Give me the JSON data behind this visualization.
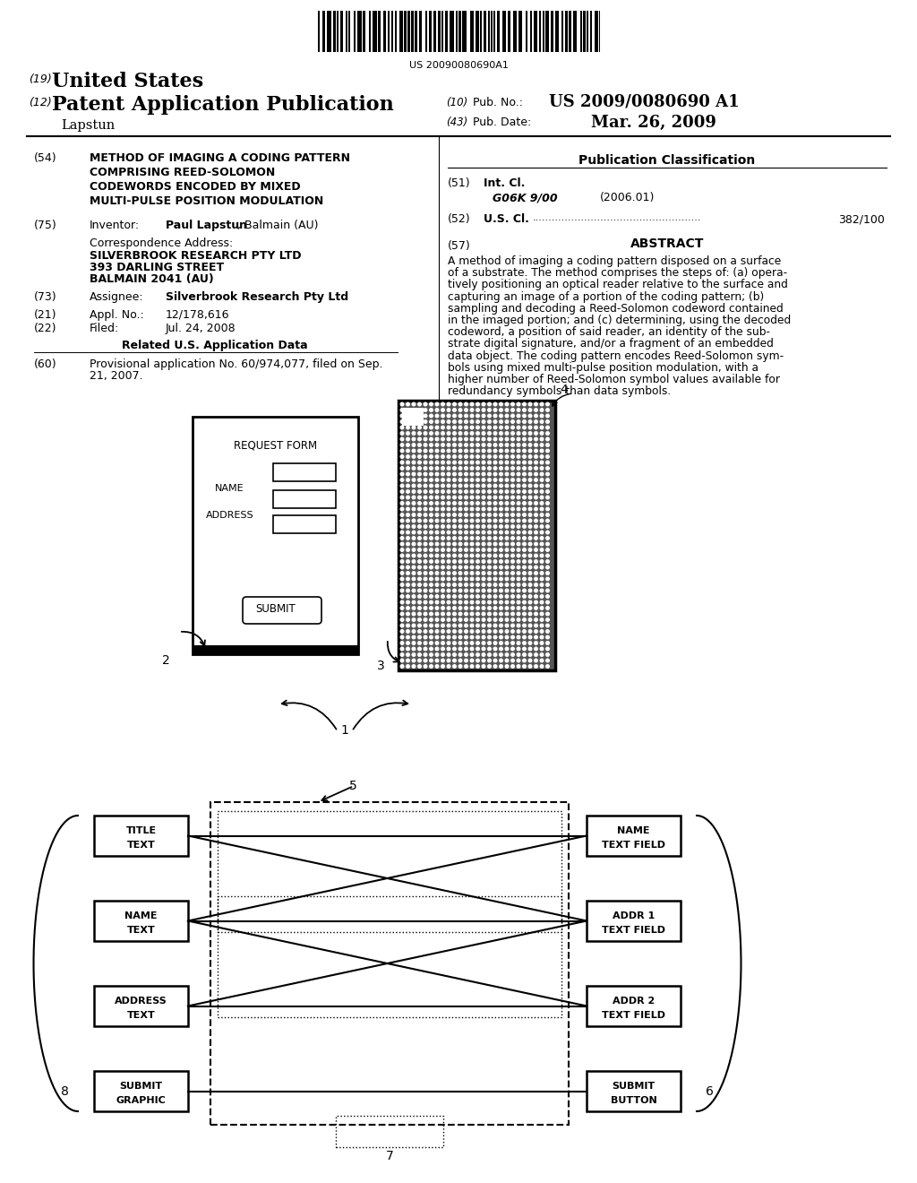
{
  "bg_color": "#ffffff",
  "barcode_text": "US 20090080690A1",
  "field54_text": [
    "METHOD OF IMAGING A CODING PATTERN",
    "COMPRISING REED-SOLOMON",
    "CODEWORDS ENCODED BY MIXED",
    "MULTI-PULSE POSITION MODULATION"
  ],
  "field75_value": "Paul Lapstun, Balmain (AU)",
  "corr_name": "SILVERBROOK RESEARCH PTY LTD",
  "corr_addr1": "393 DARLING STREET",
  "corr_addr2": "BALMAIN 2041 (AU)",
  "field73_value": "Silverbrook Research Pty Ltd",
  "field21_value": "12/178,616",
  "field22_value": "Jul. 24, 2008",
  "field60_value": [
    "Provisional application No. 60/974,077, filed on Sep.",
    "21, 2007."
  ],
  "abstract_lines": [
    "A method of imaging a coding pattern disposed on a surface",
    "of a substrate. The method comprises the steps of: (a) opera-",
    "tively positioning an optical reader relative to the surface and",
    "capturing an image of a portion of the coding pattern; (b)",
    "sampling and decoding a Reed-Solomon codeword contained",
    "in the imaged portion; and (c) determining, using the decoded",
    "codeword, a position of said reader, an identity of the sub-",
    "strate digital signature, and/or a fragment of an embedded",
    "data object. The coding pattern encodes Reed-Solomon sym-",
    "bols using mixed multi-pulse position modulation, with a",
    "higher number of Reed-Solomon symbol values available for",
    "redundancy symbols than data symbols."
  ]
}
